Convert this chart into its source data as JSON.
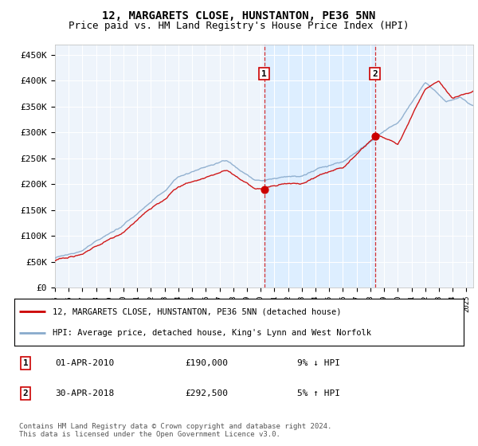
{
  "title": "12, MARGARETS CLOSE, HUNSTANTON, PE36 5NN",
  "subtitle": "Price paid vs. HM Land Registry's House Price Index (HPI)",
  "title_fontsize": 10,
  "subtitle_fontsize": 9,
  "ylabel_ticks": [
    "£0",
    "£50K",
    "£100K",
    "£150K",
    "£200K",
    "£250K",
    "£300K",
    "£350K",
    "£400K",
    "£450K"
  ],
  "ytick_values": [
    0,
    50000,
    100000,
    150000,
    200000,
    250000,
    300000,
    350000,
    400000,
    450000
  ],
  "ylim": [
    0,
    470000
  ],
  "xlim_start": 1995.0,
  "xlim_end": 2025.5,
  "sale1_x": 2010.25,
  "sale1_y": 190000,
  "sale2_x": 2018.33,
  "sale2_y": 292500,
  "red_color": "#cc0000",
  "blue_color": "#88aacc",
  "shade_color": "#ddeeff",
  "bg_color": "#eef4fb",
  "dashed_color": "#cc0000",
  "legend1": "12, MARGARETS CLOSE, HUNSTANTON, PE36 5NN (detached house)",
  "legend2": "HPI: Average price, detached house, King's Lynn and West Norfolk",
  "table_row1_num": "1",
  "table_row1_date": "01-APR-2010",
  "table_row1_price": "£190,000",
  "table_row1_hpi": "9% ↓ HPI",
  "table_row2_num": "2",
  "table_row2_date": "30-APR-2018",
  "table_row2_price": "£292,500",
  "table_row2_hpi": "5% ↑ HPI",
  "footer": "Contains HM Land Registry data © Crown copyright and database right 2024.\nThis data is licensed under the Open Government Licence v3.0."
}
